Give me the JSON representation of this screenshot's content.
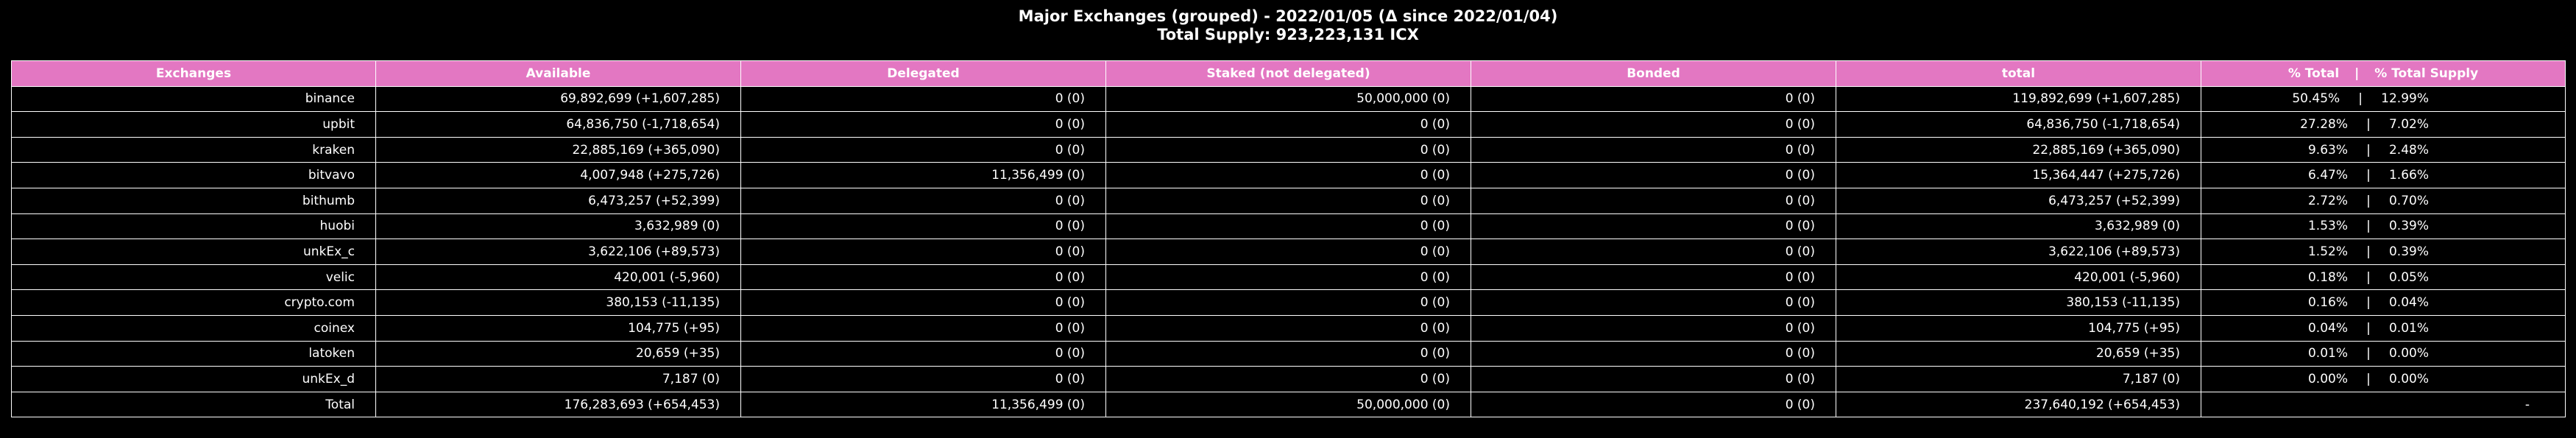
{
  "chart_data": {
    "type": "table",
    "title_line1": "Major Exchanges (grouped) - 2022/01/05 (Δ since 2022/01/04)",
    "title_line2": "Total Supply: 923,223,131 ICX",
    "columns": [
      "Exchanges",
      "Available",
      "Delegated",
      "Staked (not delegated)",
      "Bonded",
      "total"
    ],
    "pct_header": {
      "left": "% Total",
      "sep": "|",
      "right": "% Total Supply"
    },
    "rows": [
      {
        "name": "binance",
        "available": "69,892,699 (+1,607,285)",
        "delegated": "0 (0)",
        "staked": "50,000,000 (0)",
        "bonded": "0 (0)",
        "total": "119,892,699 (+1,607,285)",
        "pct_total": "50.45%",
        "sep": "|",
        "pct_supply": "12.99%"
      },
      {
        "name": "upbit",
        "available": "64,836,750 (-1,718,654)",
        "delegated": "0 (0)",
        "staked": "0 (0)",
        "bonded": "0 (0)",
        "total": "64,836,750 (-1,718,654)",
        "pct_total": "27.28%",
        "sep": "|",
        "pct_supply": "7.02%"
      },
      {
        "name": "kraken",
        "available": "22,885,169 (+365,090)",
        "delegated": "0 (0)",
        "staked": "0 (0)",
        "bonded": "0 (0)",
        "total": "22,885,169 (+365,090)",
        "pct_total": "9.63%",
        "sep": "|",
        "pct_supply": "2.48%"
      },
      {
        "name": "bitvavo",
        "available": "4,007,948 (+275,726)",
        "delegated": "11,356,499 (0)",
        "staked": "0 (0)",
        "bonded": "0 (0)",
        "total": "15,364,447 (+275,726)",
        "pct_total": "6.47%",
        "sep": "|",
        "pct_supply": "1.66%"
      },
      {
        "name": "bithumb",
        "available": "6,473,257 (+52,399)",
        "delegated": "0 (0)",
        "staked": "0 (0)",
        "bonded": "0 (0)",
        "total": "6,473,257 (+52,399)",
        "pct_total": "2.72%",
        "sep": "|",
        "pct_supply": "0.70%"
      },
      {
        "name": "huobi",
        "available": "3,632,989 (0)",
        "delegated": "0 (0)",
        "staked": "0 (0)",
        "bonded": "0 (0)",
        "total": "3,632,989 (0)",
        "pct_total": "1.53%",
        "sep": "|",
        "pct_supply": "0.39%"
      },
      {
        "name": "unkEx_c",
        "available": "3,622,106 (+89,573)",
        "delegated": "0 (0)",
        "staked": "0 (0)",
        "bonded": "0 (0)",
        "total": "3,622,106 (+89,573)",
        "pct_total": "1.52%",
        "sep": "|",
        "pct_supply": "0.39%"
      },
      {
        "name": "velic",
        "available": "420,001 (-5,960)",
        "delegated": "0 (0)",
        "staked": "0 (0)",
        "bonded": "0 (0)",
        "total": "420,001 (-5,960)",
        "pct_total": "0.18%",
        "sep": "|",
        "pct_supply": "0.05%"
      },
      {
        "name": "crypto.com",
        "available": "380,153 (-11,135)",
        "delegated": "0 (0)",
        "staked": "0 (0)",
        "bonded": "0 (0)",
        "total": "380,153 (-11,135)",
        "pct_total": "0.16%",
        "sep": "|",
        "pct_supply": "0.04%"
      },
      {
        "name": "coinex",
        "available": "104,775 (+95)",
        "delegated": "0 (0)",
        "staked": "0 (0)",
        "bonded": "0 (0)",
        "total": "104,775 (+95)",
        "pct_total": "0.04%",
        "sep": "|",
        "pct_supply": "0.01%"
      },
      {
        "name": "latoken",
        "available": "20,659 (+35)",
        "delegated": "0 (0)",
        "staked": "0 (0)",
        "bonded": "0 (0)",
        "total": "20,659 (+35)",
        "pct_total": "0.01%",
        "sep": "|",
        "pct_supply": "0.00%"
      },
      {
        "name": "unkEx_d",
        "available": "7,187 (0)",
        "delegated": "0 (0)",
        "staked": "0 (0)",
        "bonded": "0 (0)",
        "total": "7,187 (0)",
        "pct_total": "0.00%",
        "sep": "|",
        "pct_supply": "0.00%"
      }
    ],
    "total_row": {
      "name": "Total",
      "available": "176,283,693 (+654,453)",
      "delegated": "11,356,499 (0)",
      "staked": "50,000,000 (0)",
      "bonded": "0 (0)",
      "total": "237,640,192 (+654,453)",
      "pct": "-"
    },
    "colors": {
      "header_bg": "#e377c2",
      "cell_bg": "#000000",
      "text": "#ffffff",
      "border": "#ffffff"
    }
  }
}
